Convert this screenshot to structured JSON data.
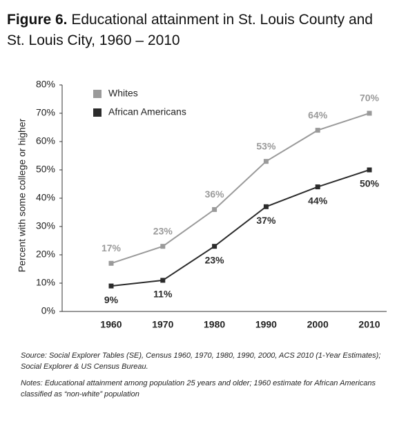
{
  "chart_data": {
    "type": "line",
    "title_label": "Figure 6.",
    "title": "Educational attainment in St. Louis County and St. Louis City, 1960 – 2010",
    "y_label": "Percent with some college or higher",
    "categories": [
      "1960",
      "1970",
      "1980",
      "1990",
      "2000",
      "2010"
    ],
    "series": [
      {
        "name": "Whites",
        "color": "#9a9a9a",
        "values": [
          17,
          23,
          36,
          53,
          64,
          70
        ],
        "value_labels": [
          "17%",
          "23%",
          "36%",
          "53%",
          "64%",
          "70%"
        ]
      },
      {
        "name": "African Americans",
        "color": "#2b2b2b",
        "values": [
          9,
          11,
          23,
          37,
          44,
          50
        ],
        "value_labels": [
          "9%",
          "11%",
          "23%",
          "37%",
          "44%",
          "50%"
        ]
      }
    ],
    "ylim": [
      0,
      80
    ],
    "yticks": [
      {
        "value": 0,
        "label": "0%"
      },
      {
        "value": 10,
        "label": "10%"
      },
      {
        "value": 20,
        "label": "20%"
      },
      {
        "value": 30,
        "label": "30%"
      },
      {
        "value": 40,
        "label": "40%"
      },
      {
        "value": 50,
        "label": "50%"
      },
      {
        "value": 60,
        "label": "60%"
      },
      {
        "value": 70,
        "label": "70%"
      },
      {
        "value": 80,
        "label": "80%"
      }
    ],
    "legend": "upper left",
    "source": "Source: Social Explorer Tables (SE), Census 1960, 1970, 1980, 1990, 2000, ACS 2010 (1-Year Estimates); Social Explorer & US Census Bureau.",
    "notes": "Notes: Educational attainment among population 25 years and older; 1960 estimate for African Americans classified as “non-white” population"
  }
}
